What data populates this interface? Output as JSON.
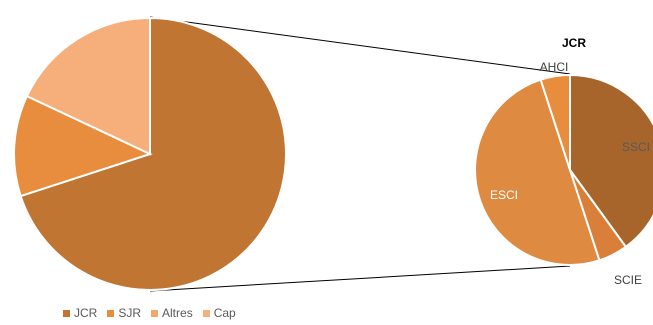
{
  "chart_data": [
    {
      "type": "pie",
      "title": "",
      "categories": [
        "JCR",
        "SJR",
        "Altres",
        "Cap"
      ],
      "values": [
        70,
        12,
        0,
        18
      ],
      "colors": [
        "#C07532",
        "#E88D3E",
        "#F4A76D",
        "#F6AE7B"
      ],
      "legend_position": "bottom-left"
    },
    {
      "type": "pie",
      "title": "JCR",
      "categories": [
        "SSCI",
        "SCIE",
        "ESCI",
        "AHCI"
      ],
      "values": [
        40,
        5,
        50,
        5
      ],
      "colors": [
        "#A8652B",
        "#D97F3A",
        "#DE8A40",
        "#E88D3E"
      ],
      "legend_position": "none"
    }
  ],
  "legend": [
    {
      "label": "JCR",
      "color": "#C07532"
    },
    {
      "label": "SJR",
      "color": "#E88D3E"
    },
    {
      "label": "Altres",
      "color": "#F4A76D"
    },
    {
      "label": "Cap",
      "color": "#F6AE7B"
    }
  ]
}
